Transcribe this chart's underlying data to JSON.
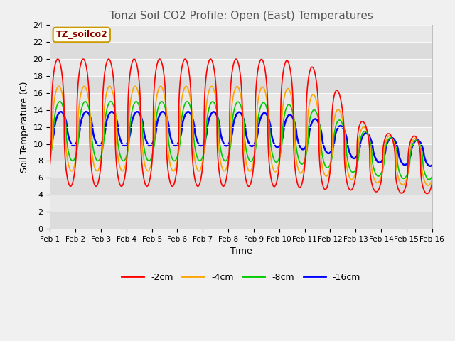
{
  "title": "Tonzi Soil CO2 Profile: Open (East) Temperatures",
  "xlabel": "Time",
  "ylabel": "Soil Temperature (C)",
  "annotation": "TZ_soilco2",
  "ylim": [
    0,
    24
  ],
  "xlim": [
    0,
    15
  ],
  "xtick_labels": [
    "Feb 1",
    "Feb 2",
    "Feb 3",
    "Feb 4",
    "Feb 5",
    "Feb 6",
    "Feb 7",
    "Feb 8",
    "Feb 9",
    "Feb 10",
    "Feb 11",
    "Feb 12",
    "Feb 13",
    "Feb 14",
    "Feb 15",
    "Feb 16"
  ],
  "ytick_vals": [
    0,
    2,
    4,
    6,
    8,
    10,
    12,
    14,
    16,
    18,
    20,
    22,
    24
  ],
  "colors": {
    "-2cm": "#ff0000",
    "-4cm": "#ffa500",
    "-8cm": "#00cc00",
    "-16cm": "#0000ff"
  },
  "bg_band_color1": "#dcdcdc",
  "bg_band_color2": "#e8e8e8",
  "legend_labels": [
    "-2cm",
    "-4cm",
    "-8cm",
    "-16cm"
  ],
  "title_fontsize": 11,
  "label_fontsize": 9,
  "annotation_fontsize": 9
}
